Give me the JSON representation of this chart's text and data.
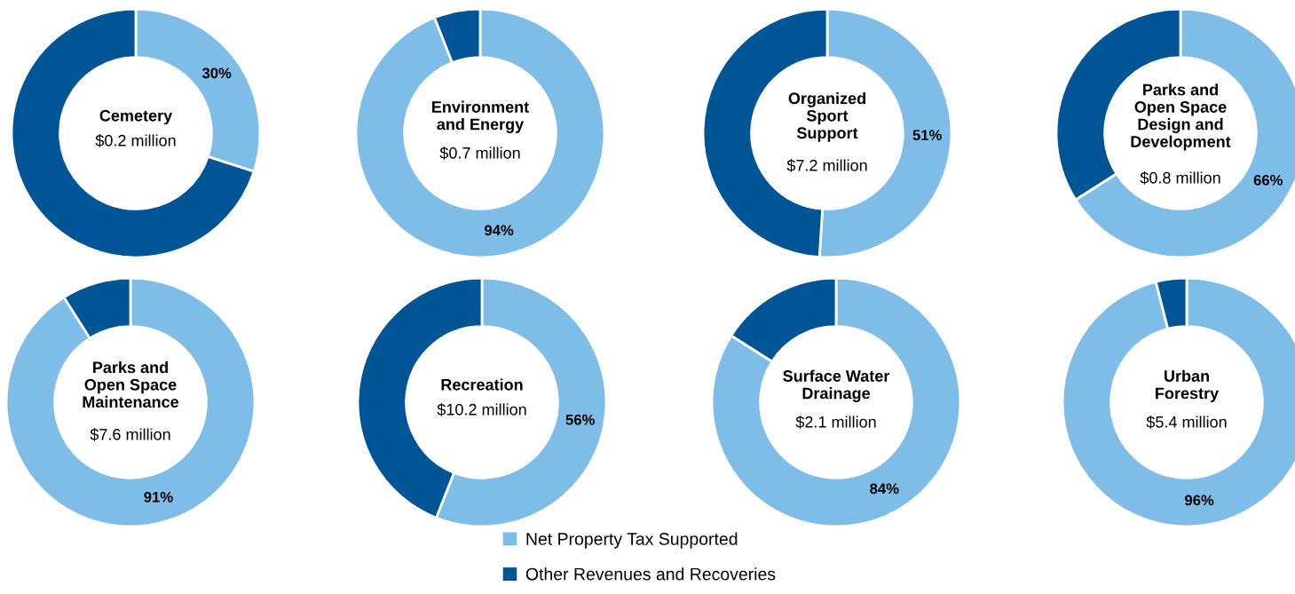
{
  "chart_data": [
    {
      "type": "donut",
      "title": "Cemetery",
      "subtitle": "$0.2 million",
      "categories": [
        "Net Property Tax Supported",
        "Other Revenues and Recoveries"
      ],
      "values": [
        30,
        70
      ],
      "colors": [
        "#7dbde8",
        "#005596"
      ],
      "value_labels": [
        "30%",
        null
      ],
      "legend": "bottom"
    },
    {
      "type": "donut",
      "title": "Environment\nand Energy",
      "subtitle": "$0.7 million",
      "categories": [
        null,
        null
      ],
      "values": [
        94,
        6
      ],
      "colors": [
        "#7dbde8",
        "#005596"
      ],
      "value_labels": [
        "94%",
        null
      ]
    },
    {
      "type": "donut",
      "title": "Organized\nSport\nSupport",
      "subtitle": "$7.2 million",
      "categories": [
        null,
        null
      ],
      "values": [
        51,
        49
      ],
      "colors": [
        "#7dbde8",
        "#005596"
      ],
      "value_labels": [
        "51%",
        null
      ]
    },
    {
      "type": "donut",
      "title": "Parks and\nOpen Space\nDesign and\nDevelopment",
      "subtitle": "$0.8 million",
      "categories": [
        null,
        null
      ],
      "values": [
        66,
        34
      ],
      "colors": [
        "#7dbde8",
        "#005596"
      ],
      "value_labels": [
        "66%",
        null
      ]
    },
    {
      "type": "donut",
      "title": "Parks and\nOpen Space\nMaintenance",
      "subtitle": "$7.6 million",
      "categories": [
        null,
        null
      ],
      "values": [
        91,
        9
      ],
      "colors": [
        "#7dbde8",
        "#005596"
      ],
      "value_labels": [
        "91%",
        null
      ]
    },
    {
      "type": "donut",
      "title": "Recreation",
      "subtitle": "$10.2 million",
      "categories": [
        null,
        null
      ],
      "values": [
        56,
        44
      ],
      "colors": [
        "#7dbde8",
        "#005596"
      ],
      "value_labels": [
        "56%",
        null
      ]
    },
    {
      "type": "donut",
      "title": "Surface Water\nDrainage",
      "subtitle": "$2.1 million",
      "categories": [
        null,
        null
      ],
      "values": [
        84,
        16
      ],
      "colors": [
        "#7dbde8",
        "#005596"
      ],
      "value_labels": [
        "84%",
        null
      ]
    },
    {
      "type": "donut",
      "title": "Urban\nForestry",
      "subtitle": "$5.4 million",
      "categories": [
        null,
        null
      ],
      "values": [
        96,
        4
      ],
      "colors": [
        "#7dbde8",
        "#005596"
      ],
      "value_labels": [
        "96%",
        null
      ]
    }
  ]
}
